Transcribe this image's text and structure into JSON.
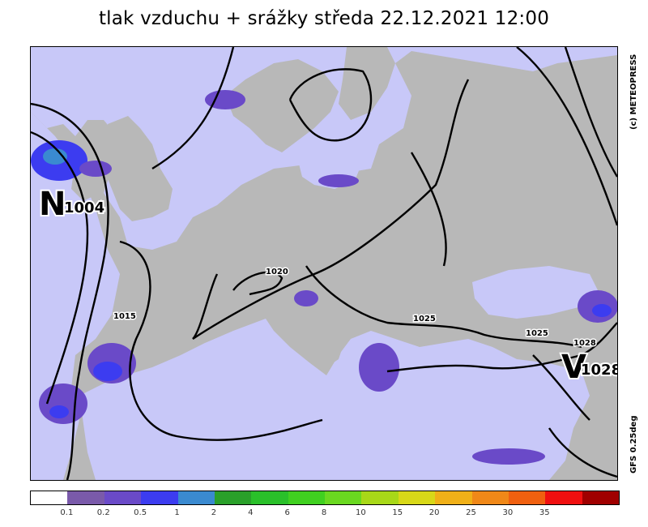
{
  "title": "tlak vzduchu + srážky  středa 22.12.2021 12:00",
  "copyright": "(c) METEOPRESS",
  "model_info": "GFS 0.25deg",
  "pressure_centers": [
    {
      "letter": "N",
      "value": "1004"
    },
    {
      "letter": "V",
      "value": "1028"
    }
  ],
  "isobar_labels": [
    "1020",
    "1015",
    "1025",
    "1025",
    "1028"
  ],
  "colors": {
    "land": "#b8b8b8",
    "sea": "#c8c8f8",
    "isobar": "#000000"
  },
  "legend": {
    "colors": [
      "#ffffff",
      "#7a5aaa",
      "#6a4ac8",
      "#3c3cf0",
      "#3a8ad0",
      "#2aa02a",
      "#2ac02a",
      "#40d020",
      "#6ad820",
      "#a8d818",
      "#d8d818",
      "#f0b018",
      "#f08818",
      "#f06010",
      "#f01010",
      "#a00000"
    ],
    "labels": [
      "0.1",
      "0.2",
      "0.5",
      "1",
      "2",
      "4",
      "6",
      "8",
      "10",
      "15",
      "20",
      "25",
      "30",
      "35"
    ]
  }
}
